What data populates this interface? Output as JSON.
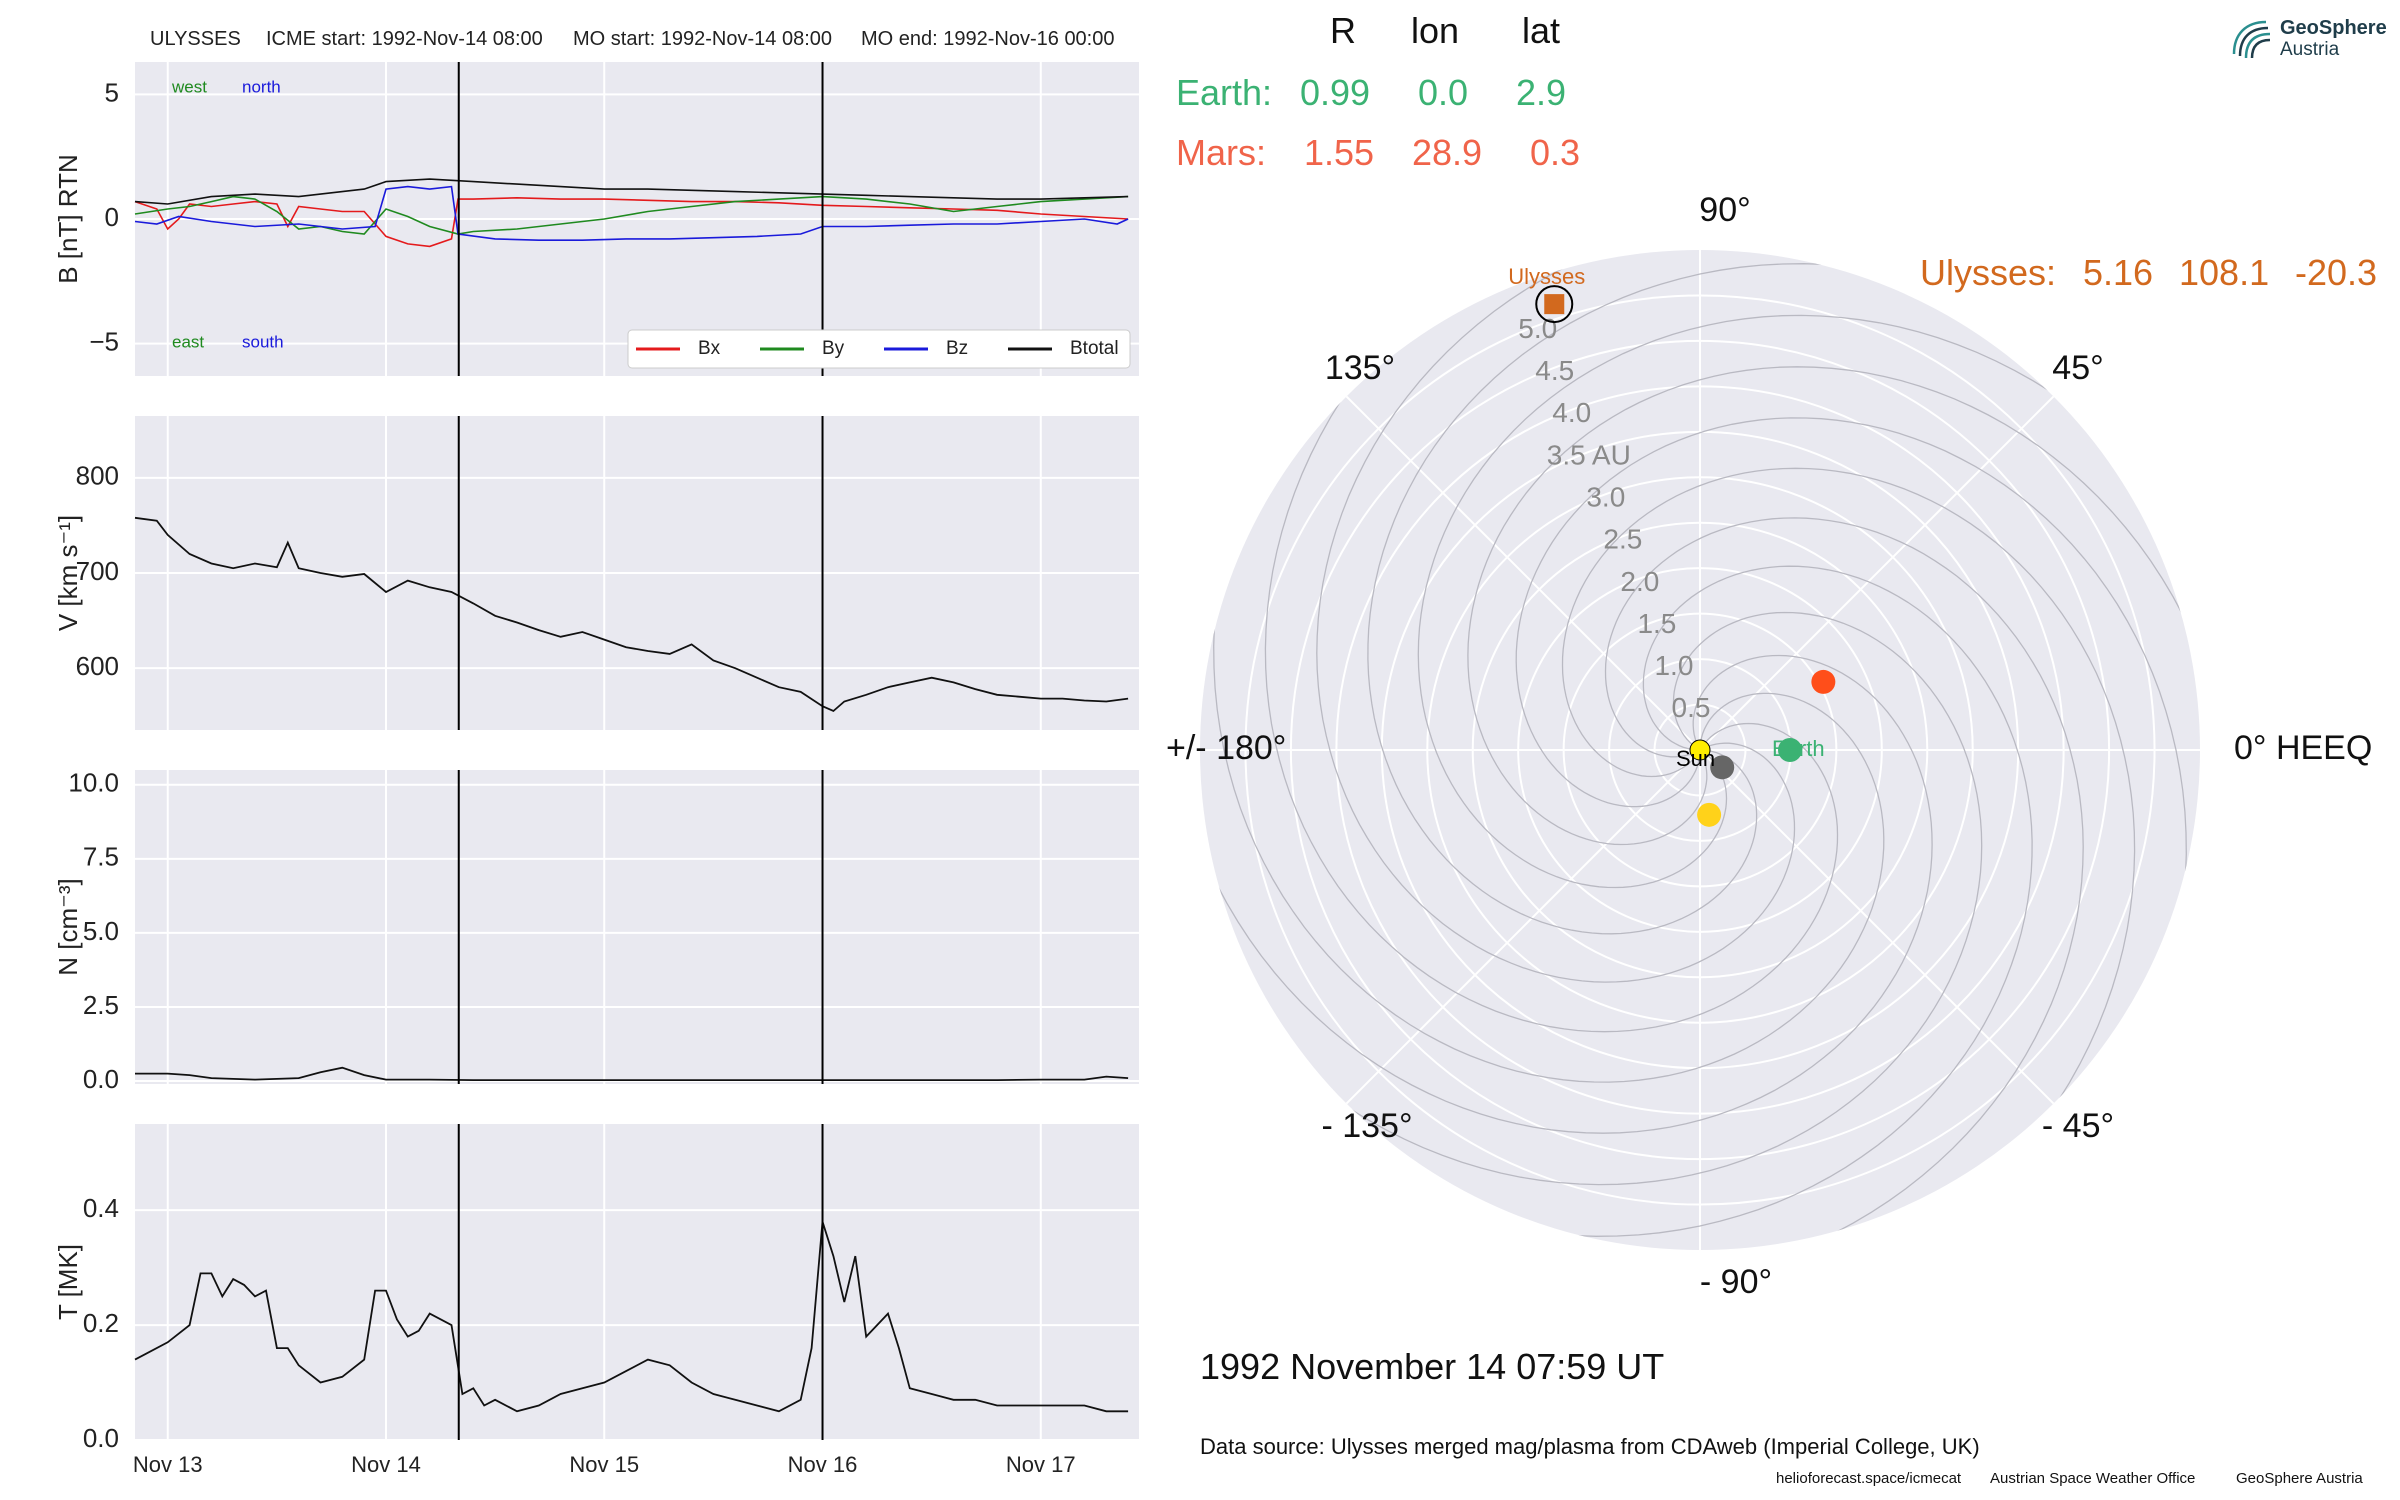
{
  "header": {
    "spacecraft": "ULYSSES",
    "icme_start": "ICME start: 1992-Nov-14 08:00",
    "mo_start": "MO start: 1992-Nov-14 08:00",
    "mo_end": "MO end: 1992-Nov-16 00:00"
  },
  "position_table": {
    "columns": [
      "R",
      "lon",
      "lat"
    ],
    "rows": [
      {
        "name": "Earth:",
        "R": "0.99",
        "lon": "0.0",
        "lat": "2.9",
        "color": "#3bb273"
      },
      {
        "name": "Mars:",
        "R": "1.55",
        "lon": "28.9",
        "lat": "0.3",
        "color": "#f0644a"
      },
      {
        "name": "Ulysses:",
        "R": "5.16",
        "lon": "108.1",
        "lat": "-20.3",
        "color": "#d2691e"
      }
    ]
  },
  "logo": {
    "line1": "GeoSphere",
    "line2": "Austria"
  },
  "timestamp": "1992 November 14  07:59 UT",
  "data_source": "Data source: Ulysses merged mag/plasma from CDAweb (Imperial College, UK)",
  "footer": {
    "link": "helioforecast.space/icmecat",
    "org1": "Austrian Space Weather Office",
    "org2": "GeoSphere Austria"
  },
  "colors": {
    "panel_bg": "#e9e9f0",
    "grid": "#ffffff",
    "bx": "#e41a1c",
    "by": "#1f8a1f",
    "bz": "#1a1adb",
    "btotal": "#111111"
  },
  "chart_data": [
    {
      "type": "line",
      "ylabel": "B [nT] RTN",
      "ylim": [
        -6.3,
        6.3
      ],
      "yticks": [
        -5,
        0,
        5
      ],
      "x_unit": "days since 1992-Nov-13 00:00",
      "xlim": [
        12.85,
        17.45
      ],
      "xtick_labels": [
        "Nov 13",
        "Nov 14",
        "Nov 15",
        "Nov 16",
        "Nov 17"
      ],
      "vlines": [
        "1992-Nov-14 08:00",
        "1992-Nov-16 00:00"
      ],
      "annotations": {
        "west": "west",
        "north": "north",
        "east": "east",
        "south": "south"
      },
      "legend": "lower-right",
      "grid": true,
      "series": [
        {
          "name": "Bx",
          "color": "#e41a1c",
          "x": [
            12.85,
            12.95,
            13.0,
            13.05,
            13.1,
            13.2,
            13.3,
            13.4,
            13.5,
            13.55,
            13.6,
            13.7,
            13.8,
            13.9,
            14.0,
            14.1,
            14.2,
            14.3,
            14.33,
            14.4,
            14.6,
            14.8,
            15.0,
            15.2,
            15.4,
            15.6,
            15.8,
            16.0,
            16.2,
            16.4,
            16.6,
            16.8,
            17.0,
            17.2,
            17.4
          ],
          "values": [
            0.7,
            0.4,
            -0.4,
            0.0,
            0.6,
            0.5,
            0.6,
            0.7,
            0.6,
            -0.3,
            0.5,
            0.4,
            0.3,
            0.3,
            -0.7,
            -1.0,
            -1.1,
            -0.8,
            0.8,
            0.8,
            0.85,
            0.8,
            0.8,
            0.75,
            0.7,
            0.7,
            0.65,
            0.55,
            0.5,
            0.45,
            0.4,
            0.35,
            0.2,
            0.1,
            0.0
          ]
        },
        {
          "name": "By",
          "color": "#1f8a1f",
          "x": [
            12.85,
            13.0,
            13.1,
            13.2,
            13.3,
            13.4,
            13.5,
            13.6,
            13.7,
            13.8,
            13.9,
            14.0,
            14.1,
            14.2,
            14.33,
            14.4,
            14.6,
            14.8,
            15.0,
            15.2,
            15.4,
            15.6,
            15.8,
            16.0,
            16.2,
            16.4,
            16.6,
            16.8,
            17.0,
            17.2,
            17.4
          ],
          "values": [
            0.2,
            0.4,
            0.5,
            0.7,
            0.9,
            0.8,
            0.3,
            -0.4,
            -0.3,
            -0.5,
            -0.6,
            0.4,
            0.1,
            -0.3,
            -0.6,
            -0.5,
            -0.4,
            -0.2,
            0.0,
            0.3,
            0.5,
            0.7,
            0.8,
            0.9,
            0.8,
            0.6,
            0.3,
            0.5,
            0.7,
            0.8,
            0.9
          ]
        },
        {
          "name": "Bz",
          "color": "#1a1adb",
          "x": [
            12.85,
            12.95,
            13.05,
            13.2,
            13.4,
            13.6,
            13.8,
            13.95,
            14.0,
            14.1,
            14.2,
            14.3,
            14.33,
            14.5,
            14.7,
            14.9,
            15.1,
            15.3,
            15.5,
            15.7,
            15.9,
            16.0,
            16.2,
            16.4,
            16.6,
            16.8,
            17.0,
            17.2,
            17.35,
            17.4
          ],
          "values": [
            -0.1,
            -0.2,
            0.1,
            -0.1,
            -0.3,
            -0.2,
            -0.4,
            -0.3,
            1.2,
            1.3,
            1.2,
            1.3,
            -0.6,
            -0.8,
            -0.85,
            -0.85,
            -0.8,
            -0.8,
            -0.75,
            -0.7,
            -0.6,
            -0.3,
            -0.3,
            -0.25,
            -0.2,
            -0.2,
            -0.1,
            0.0,
            -0.2,
            0.0
          ]
        },
        {
          "name": "Btotal",
          "color": "#111111",
          "x": [
            12.85,
            13.0,
            13.2,
            13.4,
            13.6,
            13.8,
            13.9,
            14.0,
            14.2,
            14.4,
            14.6,
            14.8,
            15.0,
            15.2,
            15.4,
            15.6,
            15.8,
            16.0,
            16.2,
            16.4,
            16.6,
            16.8,
            17.0,
            17.2,
            17.4
          ],
          "values": [
            0.7,
            0.6,
            0.9,
            1.0,
            0.9,
            1.1,
            1.2,
            1.5,
            1.6,
            1.5,
            1.4,
            1.3,
            1.2,
            1.2,
            1.15,
            1.1,
            1.05,
            1.0,
            0.95,
            0.9,
            0.85,
            0.8,
            0.8,
            0.85,
            0.9
          ]
        }
      ]
    },
    {
      "type": "line",
      "ylabel": "V [km s⁻¹]",
      "ylim": [
        535,
        865
      ],
      "yticks": [
        600,
        700,
        800
      ],
      "x_unit": "days since 1992-Nov-13 00:00",
      "xlim": [
        12.85,
        17.45
      ],
      "vlines": [
        "1992-Nov-14 08:00",
        "1992-Nov-16 00:00"
      ],
      "grid": true,
      "series": [
        {
          "name": "",
          "color": "#111111",
          "x": [
            12.85,
            12.95,
            13.0,
            13.1,
            13.2,
            13.3,
            13.4,
            13.5,
            13.55,
            13.6,
            13.7,
            13.8,
            13.9,
            14.0,
            14.1,
            14.2,
            14.3,
            14.4,
            14.5,
            14.6,
            14.7,
            14.8,
            14.9,
            15.0,
            15.1,
            15.2,
            15.3,
            15.4,
            15.5,
            15.6,
            15.7,
            15.8,
            15.9,
            16.0,
            16.05,
            16.1,
            16.2,
            16.3,
            16.4,
            16.5,
            16.6,
            16.7,
            16.8,
            16.9,
            17.0,
            17.1,
            17.2,
            17.3,
            17.4
          ],
          "values": [
            758,
            755,
            740,
            720,
            710,
            705,
            710,
            706,
            732,
            705,
            700,
            696,
            699,
            680,
            692,
            685,
            680,
            668,
            655,
            648,
            640,
            633,
            638,
            630,
            622,
            618,
            615,
            625,
            608,
            600,
            590,
            580,
            575,
            560,
            555,
            565,
            572,
            580,
            585,
            590,
            585,
            578,
            572,
            570,
            568,
            568,
            566,
            565,
            568
          ]
        }
      ]
    },
    {
      "type": "line",
      "ylabel": "N [cm⁻³]",
      "ylim": [
        -0.1,
        10.5
      ],
      "yticks": [
        0.0,
        2.5,
        5.0,
        7.5,
        10.0
      ],
      "x_unit": "days since 1992-Nov-13 00:00",
      "xlim": [
        12.85,
        17.45
      ],
      "vlines": [
        "1992-Nov-14 08:00",
        "1992-Nov-16 00:00"
      ],
      "grid": true,
      "series": [
        {
          "name": "",
          "color": "#111111",
          "x": [
            12.85,
            13.0,
            13.1,
            13.2,
            13.4,
            13.6,
            13.7,
            13.8,
            13.9,
            14.0,
            14.2,
            14.4,
            14.6,
            14.8,
            15.0,
            15.2,
            15.4,
            15.6,
            15.8,
            16.0,
            16.2,
            16.4,
            16.6,
            16.8,
            17.0,
            17.2,
            17.3,
            17.4
          ],
          "values": [
            0.25,
            0.25,
            0.2,
            0.1,
            0.05,
            0.1,
            0.3,
            0.45,
            0.2,
            0.05,
            0.05,
            0.03,
            0.03,
            0.03,
            0.03,
            0.03,
            0.03,
            0.03,
            0.03,
            0.03,
            0.03,
            0.03,
            0.03,
            0.03,
            0.05,
            0.05,
            0.15,
            0.1
          ]
        }
      ]
    },
    {
      "type": "line",
      "ylabel": "T [MK]",
      "ylim": [
        0.0,
        0.55
      ],
      "yticks": [
        0.0,
        0.2,
        0.4
      ],
      "x_unit": "days since 1992-Nov-13 00:00",
      "xlim": [
        12.85,
        17.45
      ],
      "xtick_labels": [
        "Nov 13",
        "Nov 14",
        "Nov 15",
        "Nov 16",
        "Nov 17"
      ],
      "vlines": [
        "1992-Nov-14 08:00",
        "1992-Nov-16 00:00"
      ],
      "grid": true,
      "series": [
        {
          "name": "",
          "color": "#111111",
          "x": [
            12.85,
            12.9,
            13.0,
            13.1,
            13.15,
            13.2,
            13.25,
            13.3,
            13.35,
            13.4,
            13.45,
            13.5,
            13.55,
            13.6,
            13.7,
            13.8,
            13.9,
            13.95,
            14.0,
            14.05,
            14.1,
            14.15,
            14.2,
            14.25,
            14.3,
            14.35,
            14.4,
            14.45,
            14.5,
            14.6,
            14.7,
            14.8,
            14.9,
            15.0,
            15.1,
            15.2,
            15.3,
            15.4,
            15.5,
            15.6,
            15.7,
            15.8,
            15.9,
            15.95,
            16.0,
            16.05,
            16.1,
            16.15,
            16.2,
            16.3,
            16.35,
            16.4,
            16.5,
            16.6,
            16.7,
            16.8,
            16.9,
            17.0,
            17.1,
            17.2,
            17.3,
            17.4
          ],
          "values": [
            0.14,
            0.15,
            0.17,
            0.2,
            0.29,
            0.29,
            0.25,
            0.28,
            0.27,
            0.25,
            0.26,
            0.16,
            0.16,
            0.13,
            0.1,
            0.11,
            0.14,
            0.26,
            0.26,
            0.21,
            0.18,
            0.19,
            0.22,
            0.21,
            0.2,
            0.08,
            0.09,
            0.06,
            0.07,
            0.05,
            0.06,
            0.08,
            0.09,
            0.1,
            0.12,
            0.14,
            0.13,
            0.1,
            0.08,
            0.07,
            0.06,
            0.05,
            0.07,
            0.16,
            0.38,
            0.32,
            0.24,
            0.32,
            0.18,
            0.22,
            0.16,
            0.09,
            0.08,
            0.07,
            0.07,
            0.06,
            0.06,
            0.06,
            0.06,
            0.06,
            0.05,
            0.05
          ]
        }
      ]
    },
    {
      "type": "polar",
      "theta_labels": [
        "0° HEEQ",
        "45°",
        "90°",
        "135°",
        "+/- 180°",
        "- 135°",
        "- 90°",
        "- 45°"
      ],
      "r_labels": [
        "0.5",
        "1.0",
        "1.5",
        "2.0",
        "2.5",
        "3.0",
        "3.5 AU",
        "4.0",
        "4.5",
        "5.0"
      ],
      "r_ticks": [
        0.5,
        1.0,
        1.5,
        2.0,
        2.5,
        3.0,
        3.5,
        4.0,
        4.5,
        5.0
      ],
      "r_max": 5.5,
      "sun_label": "Sun",
      "bodies": [
        {
          "name": "Earth",
          "label": "Earth",
          "r": 0.99,
          "lon": 0.0,
          "color": "#3bb273"
        },
        {
          "name": "Mars",
          "label": "",
          "r": 1.55,
          "lon": 28.9,
          "color": "#ff4e1a"
        },
        {
          "name": "Venus",
          "label": "",
          "r": 0.72,
          "lon": -82.0,
          "color": "#ffd21a"
        },
        {
          "name": "Mercury",
          "label": "",
          "r": 0.31,
          "lon": -38.0,
          "color": "#666666"
        },
        {
          "name": "Ulysses",
          "label": "Ulysses",
          "r": 5.16,
          "lon": 108.1,
          "color": "#d2691e"
        }
      ]
    }
  ]
}
